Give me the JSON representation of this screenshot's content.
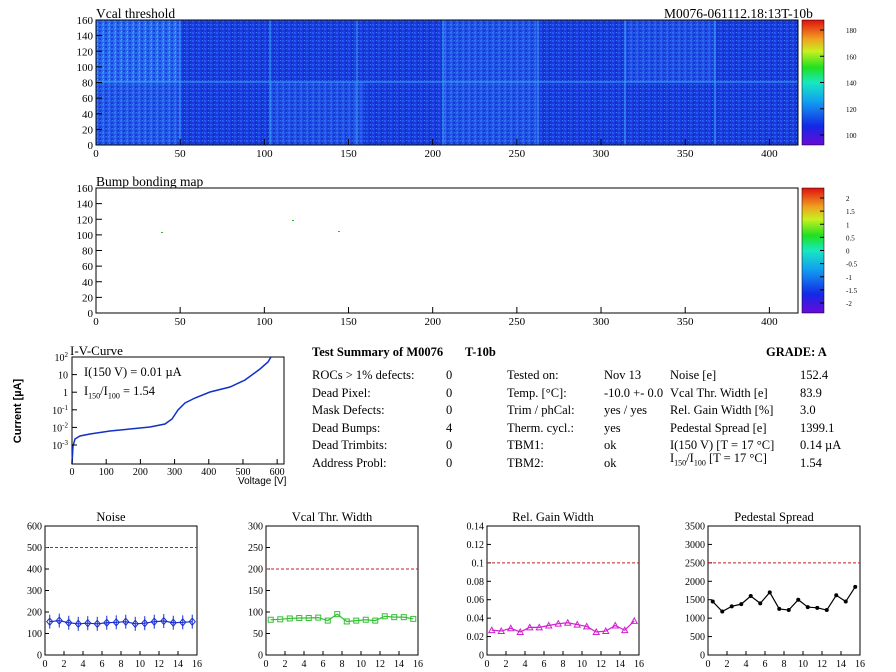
{
  "module_id": "M0076-061112.18:13T-10b",
  "vcal_map": {
    "title": "Vcal threshold",
    "x_ticks": [
      "0",
      "50",
      "100",
      "150",
      "200",
      "250",
      "300",
      "350",
      "400"
    ],
    "y_ticks": [
      "0",
      "20",
      "40",
      "60",
      "80",
      "100",
      "120",
      "140",
      "160"
    ],
    "palette_labels": [
      "100",
      "120",
      "140",
      "160",
      "180"
    ]
  },
  "bump_map": {
    "title": "Bump bonding map",
    "x_ticks": [
      "0",
      "50",
      "100",
      "150",
      "200",
      "250",
      "300",
      "350",
      "400"
    ],
    "y_ticks": [
      "0",
      "20",
      "40",
      "60",
      "80",
      "100",
      "120",
      "140",
      "160"
    ],
    "palette_labels": [
      "-2",
      "-1.5",
      "-1",
      "-0.5",
      "0",
      "0.5",
      "1",
      "1.5",
      "2"
    ]
  },
  "iv_curve": {
    "title": "I-V-Curve",
    "ylabel": "Current [µA]",
    "xlabel": "Voltage [V]",
    "x_ticks": [
      "0",
      "100",
      "200",
      "300",
      "400",
      "500",
      "600"
    ],
    "y_ticks": [
      "10^-3",
      "10^-2",
      "10^-1",
      "1",
      "10",
      "10^2"
    ],
    "annot_1": "I(150 V) = 0.01 µA",
    "annot_2_a": "I",
    "annot_2_sub1": "150",
    "annot_2_b": "/I",
    "annot_2_sub2": "100",
    "annot_2_c": "=  1.54",
    "color": "#1030c8"
  },
  "summary": {
    "title": "Test Summary of M0076",
    "tag": "T-10b",
    "grade_label": "GRADE:  A",
    "left_labels": [
      "ROCs > 1% defects:",
      "Dead Pixel:",
      "Mask Defects:",
      "Dead Bumps:",
      "Dead Trimbits:",
      "Address Probl:"
    ],
    "left_values": [
      "0",
      "0",
      "0",
      "4",
      "0",
      "0"
    ],
    "mid_labels": [
      "Tested on:",
      "Temp. [°C]:",
      "Trim / phCal:",
      "Therm. cycl.:",
      "TBM1:",
      "TBM2:"
    ],
    "mid_values": [
      "Nov 13",
      "-10.0 +- 0.0",
      "yes / yes",
      "yes",
      "ok",
      "ok"
    ],
    "right_labels": [
      "Noise [e]",
      "Vcal Thr. Width [e]",
      "Rel. Gain Width [%]",
      "Pedestal Spread [e]",
      "I(150 V) [T = 17 °C]"
    ],
    "right_values": [
      "152.4",
      "83.9",
      "3.0",
      "1399.1",
      "0.14 µA",
      "1.54"
    ],
    "ratio_label_a": "I",
    "ratio_label_sub1": "150",
    "ratio_label_b": "/I",
    "ratio_label_sub2": "100",
    "ratio_label_c": "[T = 17 °C]"
  },
  "chart_data": [
    {
      "type": "line",
      "title": "Noise",
      "x": [
        0,
        1,
        2,
        3,
        4,
        5,
        6,
        7,
        8,
        9,
        10,
        11,
        12,
        13,
        14,
        15
      ],
      "values": [
        155,
        160,
        150,
        145,
        148,
        145,
        150,
        152,
        155,
        145,
        148,
        155,
        158,
        150,
        152,
        155
      ],
      "xlim": [
        0,
        16
      ],
      "ylim": [
        0,
        600
      ],
      "x_ticks": [
        "0",
        "2",
        "4",
        "6",
        "8",
        "10",
        "12",
        "14",
        "16"
      ],
      "y_ticks": [
        "0",
        "100",
        "200",
        "300",
        "400",
        "500",
        "600"
      ],
      "threshold": 500,
      "marker": "diamond",
      "color": "#1a2fd0"
    },
    {
      "type": "line",
      "title": "Vcal Thr. Width",
      "x": [
        0,
        1,
        2,
        3,
        4,
        5,
        6,
        7,
        8,
        9,
        10,
        11,
        12,
        13,
        14,
        15
      ],
      "values": [
        82,
        83,
        85,
        86,
        86,
        87,
        80,
        95,
        78,
        80,
        82,
        80,
        90,
        88,
        88,
        84
      ],
      "xlim": [
        0,
        16
      ],
      "ylim": [
        0,
        300
      ],
      "x_ticks": [
        "0",
        "2",
        "4",
        "6",
        "8",
        "10",
        "12",
        "14",
        "16"
      ],
      "y_ticks": [
        "0",
        "50",
        "100",
        "150",
        "200",
        "250",
        "300"
      ],
      "threshold": 200,
      "marker": "square",
      "color": "#33c033"
    },
    {
      "type": "line",
      "title": "Rel. Gain Width",
      "x": [
        0,
        1,
        2,
        3,
        4,
        5,
        6,
        7,
        8,
        9,
        10,
        11,
        12,
        13,
        14,
        15
      ],
      "values": [
        0.027,
        0.026,
        0.029,
        0.025,
        0.03,
        0.03,
        0.032,
        0.034,
        0.035,
        0.033,
        0.031,
        0.025,
        0.026,
        0.032,
        0.027,
        0.037
      ],
      "xlim": [
        0,
        16
      ],
      "ylim": [
        0,
        0.14
      ],
      "x_ticks": [
        "0",
        "2",
        "4",
        "6",
        "8",
        "10",
        "12",
        "14",
        "16"
      ],
      "y_ticks": [
        "0",
        "0.02",
        "0.04",
        "0.06",
        "0.08",
        "0.1",
        "0.12",
        "0.14"
      ],
      "threshold": 0.1,
      "marker": "triangle",
      "color": "#d020d0"
    },
    {
      "type": "line",
      "title": "Pedestal Spread",
      "x": [
        0,
        1,
        2,
        3,
        4,
        5,
        6,
        7,
        8,
        9,
        10,
        11,
        12,
        13,
        14,
        15
      ],
      "values": [
        1450,
        1180,
        1320,
        1380,
        1600,
        1400,
        1700,
        1250,
        1220,
        1500,
        1300,
        1280,
        1220,
        1620,
        1450,
        1850
      ],
      "xlim": [
        0,
        16
      ],
      "ylim": [
        0,
        3500
      ],
      "x_ticks": [
        "0",
        "2",
        "4",
        "6",
        "8",
        "10",
        "12",
        "14",
        "16"
      ],
      "y_ticks": [
        "0",
        "500",
        "1000",
        "1500",
        "2000",
        "2500",
        "3000",
        "3500"
      ],
      "threshold": 2500,
      "marker": "dot",
      "color": "#000000"
    }
  ]
}
